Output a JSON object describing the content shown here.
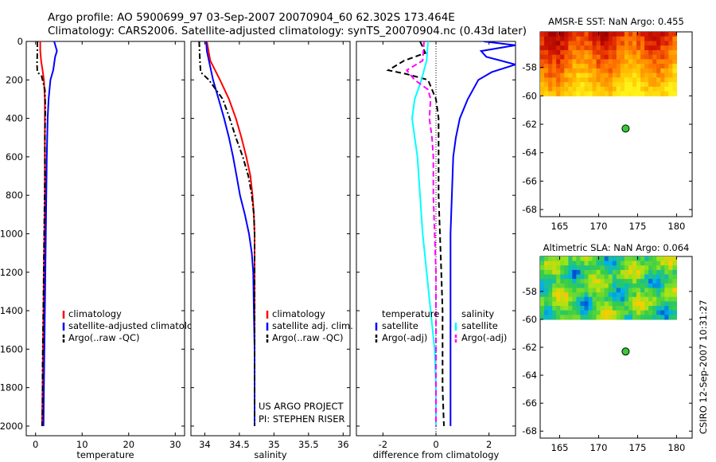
{
  "figure": {
    "title_line1": "Argo profile: AO 5900699_97 03-Sep-2007 20070904_60 62.302S 173.464E",
    "title_line2": "Climatology: CARS2006. Satellite-adjusted climatology: synTS_20070904.nc (0.43d later)",
    "credit_line1": "US ARGO PROJECT",
    "credit_line2": "PI: STEPHEN RISER",
    "side_stamp": "CSIRO 12-Sep-2007 10:31:27"
  },
  "colors": {
    "climatology": "#ff0000",
    "satellite": "#0000ff",
    "argo": "#000000",
    "satellite_salinity": "#00ffff",
    "argo_salinity": "#ff00ff",
    "map_point": "#33cc33"
  },
  "chart_data": [
    {
      "id": "temperature",
      "type": "line",
      "xlabel": "temperature",
      "ylabel": "",
      "xlim": [
        -2,
        32
      ],
      "ylim": [
        2050,
        0
      ],
      "xticks": [
        0,
        10,
        20,
        30
      ],
      "yticks": [
        0,
        200,
        400,
        600,
        800,
        1000,
        1200,
        1400,
        1600,
        1800,
        2000
      ],
      "legend": {
        "position": "right",
        "entries": [
          "climatology",
          "satellite-adjusted climatology",
          "Argo(..raw -QC)"
        ]
      },
      "series": [
        {
          "name": "climatology",
          "color": "#ff0000",
          "dash": "solid",
          "points": [
            [
              1.0,
              0
            ],
            [
              1.0,
              50
            ],
            [
              1.2,
              100
            ],
            [
              1.5,
              150
            ],
            [
              1.8,
              200
            ],
            [
              2.0,
              300
            ],
            [
              2.0,
              400
            ],
            [
              2.0,
              600
            ],
            [
              2.0,
              800
            ],
            [
              1.9,
              1000
            ],
            [
              1.8,
              1200
            ],
            [
              1.7,
              1400
            ],
            [
              1.6,
              1600
            ],
            [
              1.5,
              1800
            ],
            [
              1.4,
              2000
            ]
          ]
        },
        {
          "name": "satellite-adjusted climatology",
          "color": "#0000ff",
          "dash": "solid",
          "points": [
            [
              4.0,
              0
            ],
            [
              4.6,
              50
            ],
            [
              4.2,
              80
            ],
            [
              3.8,
              150
            ],
            [
              3.2,
              200
            ],
            [
              2.8,
              300
            ],
            [
              2.6,
              400
            ],
            [
              2.4,
              600
            ],
            [
              2.3,
              800
            ],
            [
              2.2,
              1000
            ],
            [
              2.1,
              1200
            ],
            [
              2.0,
              1400
            ],
            [
              1.9,
              1600
            ],
            [
              1.8,
              1800
            ],
            [
              1.7,
              2000
            ]
          ]
        },
        {
          "name": "Argo(..raw -QC)",
          "color": "#000000",
          "dash": "dashdot",
          "points": [
            [
              0.4,
              0
            ],
            [
              0.4,
              50
            ],
            [
              0.3,
              120
            ],
            [
              0.4,
              160
            ],
            [
              1.3,
              180
            ],
            [
              2.0,
              250
            ],
            [
              2.1,
              350
            ],
            [
              2.0,
              500
            ],
            [
              2.0,
              700
            ],
            [
              1.9,
              900
            ],
            [
              1.8,
              1100
            ],
            [
              1.7,
              1300
            ],
            [
              1.6,
              1500
            ],
            [
              1.5,
              1700
            ],
            [
              1.5,
              1900
            ],
            [
              1.4,
              2000
            ]
          ]
        }
      ]
    },
    {
      "id": "salinity",
      "type": "line",
      "xlabel": "salinity",
      "ylabel": "",
      "xlim": [
        33.8,
        36.1
      ],
      "ylim": [
        2050,
        0
      ],
      "xticks": [
        34,
        34.5,
        35,
        35.5,
        36
      ],
      "xtick_labels": [
        "34",
        "34.5",
        "35",
        "35.5",
        "36"
      ],
      "yticks": [
        0,
        200,
        400,
        600,
        800,
        1000,
        1200,
        1400,
        1600,
        1800,
        2000
      ],
      "legend": {
        "position": "right",
        "entries": [
          "climatology",
          "satellite adj. clim.",
          "Argo(..raw -QC)"
        ]
      },
      "series": [
        {
          "name": "climatology",
          "color": "#ff0000",
          "dash": "solid",
          "points": [
            [
              34.03,
              0
            ],
            [
              34.08,
              100
            ],
            [
              34.22,
              200
            ],
            [
              34.35,
              300
            ],
            [
              34.45,
              400
            ],
            [
              34.53,
              500
            ],
            [
              34.6,
              600
            ],
            [
              34.66,
              700
            ],
            [
              34.69,
              800
            ],
            [
              34.71,
              900
            ],
            [
              34.72,
              1000
            ],
            [
              34.72,
              1200
            ],
            [
              34.72,
              1400
            ],
            [
              34.72,
              1600
            ],
            [
              34.72,
              1800
            ],
            [
              34.72,
              2000
            ]
          ]
        },
        {
          "name": "satellite adj. clim.",
          "color": "#0000ff",
          "dash": "solid",
          "points": [
            [
              34.02,
              0
            ],
            [
              34.03,
              50
            ],
            [
              34.06,
              100
            ],
            [
              34.12,
              200
            ],
            [
              34.2,
              300
            ],
            [
              34.28,
              400
            ],
            [
              34.35,
              500
            ],
            [
              34.41,
              600
            ],
            [
              34.46,
              700
            ],
            [
              34.51,
              800
            ],
            [
              34.58,
              900
            ],
            [
              34.64,
              1000
            ],
            [
              34.68,
              1100
            ],
            [
              34.7,
              1200
            ],
            [
              34.71,
              1400
            ],
            [
              34.72,
              1600
            ],
            [
              34.72,
              1800
            ],
            [
              34.72,
              2000
            ]
          ]
        },
        {
          "name": "Argo(..raw -QC)",
          "color": "#000000",
          "dash": "dashdot",
          "points": [
            [
              33.92,
              0
            ],
            [
              33.93,
              100
            ],
            [
              33.94,
              160
            ],
            [
              34.06,
              200
            ],
            [
              34.16,
              250
            ],
            [
              34.26,
              300
            ],
            [
              34.36,
              400
            ],
            [
              34.45,
              500
            ],
            [
              34.55,
              600
            ],
            [
              34.63,
              700
            ],
            [
              34.68,
              800
            ],
            [
              34.71,
              900
            ],
            [
              34.72,
              1000
            ],
            [
              34.72,
              1200
            ],
            [
              34.72,
              1400
            ],
            [
              34.72,
              1600
            ],
            [
              34.72,
              1800
            ],
            [
              34.72,
              2000
            ]
          ]
        }
      ]
    },
    {
      "id": "difference",
      "type": "line",
      "xlabel": "difference from climatology",
      "ylabel": "",
      "xlim": [
        -3,
        3
      ],
      "ylim": [
        2050,
        0
      ],
      "xticks": [
        -2,
        0,
        2
      ],
      "yticks": [
        0,
        200,
        400,
        600,
        800,
        1000,
        1200,
        1400,
        1600,
        1800,
        2000
      ],
      "zero_line": true,
      "legend": {
        "position": "right",
        "groups": [
          {
            "title": "temperature",
            "entries": [
              "satellite",
              "Argo(-adj)"
            ]
          },
          {
            "title": "salinity",
            "entries": [
              "satellite",
              "Argo(-adj)"
            ]
          }
        ]
      },
      "series": [
        {
          "name": "temperature satellite",
          "color": "#0000ff",
          "dash": "solid",
          "points": [
            [
              1.8,
              0
            ],
            [
              3.0,
              20
            ],
            [
              1.7,
              50
            ],
            [
              1.9,
              80
            ],
            [
              3.0,
              120
            ],
            [
              2.1,
              160
            ],
            [
              1.6,
              200
            ],
            [
              1.2,
              300
            ],
            [
              0.9,
              400
            ],
            [
              0.75,
              500
            ],
            [
              0.65,
              600
            ],
            [
              0.6,
              800
            ],
            [
              0.55,
              1000
            ],
            [
              0.55,
              1400
            ],
            [
              0.55,
              1800
            ],
            [
              0.55,
              2000
            ]
          ]
        },
        {
          "name": "temperature Argo(-adj)",
          "color": "#000000",
          "dash": "dashed",
          "points": [
            [
              -0.6,
              0
            ],
            [
              -0.4,
              60
            ],
            [
              -1.2,
              100
            ],
            [
              -1.8,
              150
            ],
            [
              -1.1,
              170
            ],
            [
              -0.3,
              200
            ],
            [
              0.0,
              300
            ],
            [
              0.1,
              400
            ],
            [
              0.1,
              600
            ],
            [
              0.1,
              800
            ],
            [
              0.15,
              1000
            ],
            [
              0.2,
              1200
            ],
            [
              0.25,
              1400
            ],
            [
              0.25,
              1600
            ],
            [
              0.25,
              1800
            ],
            [
              0.3,
              2000
            ]
          ]
        },
        {
          "name": "salinity satellite",
          "color": "#00ffff",
          "dash": "solid",
          "points": [
            [
              -0.3,
              0
            ],
            [
              -0.35,
              100
            ],
            [
              -0.55,
              200
            ],
            [
              -0.8,
              300
            ],
            [
              -0.9,
              400
            ],
            [
              -0.8,
              500
            ],
            [
              -0.7,
              600
            ],
            [
              -0.6,
              800
            ],
            [
              -0.5,
              1000
            ],
            [
              -0.35,
              1200
            ],
            [
              -0.2,
              1400
            ],
            [
              -0.05,
              1600
            ],
            [
              0.0,
              1800
            ],
            [
              0.0,
              2000
            ]
          ]
        },
        {
          "name": "salinity Argo(-adj)",
          "color": "#ff00ff",
          "dash": "dashed",
          "points": [
            [
              -0.45,
              0
            ],
            [
              -0.5,
              100
            ],
            [
              -1.1,
              150
            ],
            [
              -0.8,
              200
            ],
            [
              -0.3,
              250
            ],
            [
              -0.2,
              300
            ],
            [
              -0.25,
              400
            ],
            [
              -0.15,
              500
            ],
            [
              -0.1,
              600
            ],
            [
              -0.1,
              800
            ],
            [
              -0.05,
              1000
            ],
            [
              0.0,
              1200
            ],
            [
              0.0,
              1600
            ],
            [
              0.0,
              2000
            ]
          ]
        }
      ]
    },
    {
      "id": "sst-map",
      "type": "heatmap",
      "title": "AMSR-E SST: NaN Argo: 0.455",
      "xlim": [
        162.5,
        182
      ],
      "ylim": [
        -68.5,
        -55.5
      ],
      "xticks": [
        165,
        170,
        175,
        180
      ],
      "yticks": [
        -58,
        -60,
        -62,
        -64,
        -66,
        -68
      ],
      "coverage": {
        "lon": [
          162.5,
          180
        ],
        "lat": [
          -60,
          -55.5
        ]
      },
      "marker": {
        "lon": 173.464,
        "lat": -62.302
      }
    },
    {
      "id": "sla-map",
      "type": "heatmap",
      "title": "Altimetric SLA: NaN Argo: 0.064",
      "xlim": [
        162.5,
        182
      ],
      "ylim": [
        -68.5,
        -55.5
      ],
      "xticks": [
        165,
        170,
        175,
        180
      ],
      "yticks": [
        -58,
        -60,
        -62,
        -64,
        -66,
        -68
      ],
      "coverage": {
        "lon": [
          162.5,
          180
        ],
        "lat": [
          -60,
          -55.5
        ]
      },
      "marker": {
        "lon": 173.464,
        "lat": -62.302
      }
    }
  ]
}
